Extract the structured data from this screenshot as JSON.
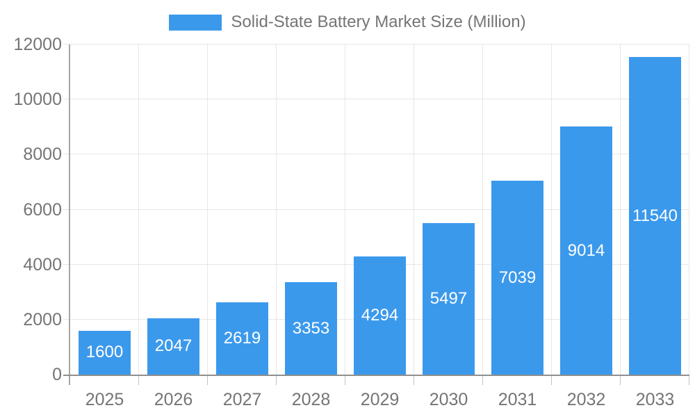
{
  "chart_data": {
    "type": "bar",
    "title": "Solid-State Battery Market Size (Million)",
    "categories": [
      "2025",
      "2026",
      "2027",
      "2028",
      "2029",
      "2030",
      "2031",
      "2032",
      "2033"
    ],
    "values": [
      1600,
      2047,
      2619,
      3353,
      4294,
      5497,
      7039,
      9014,
      11540
    ],
    "xlabel": "",
    "ylabel": "",
    "ylim": [
      0,
      12000
    ],
    "ytick_step": 2000,
    "yticks": [
      "0",
      "2000",
      "4000",
      "6000",
      "8000",
      "10000",
      "12000"
    ],
    "grid": true,
    "legend_position": "top-center",
    "value_labels": "inside-bar-centered",
    "bar_width_ratio": 0.75
  },
  "colors": {
    "bar": "#3B99EC",
    "grid": "#E6E6E6",
    "tick": "#C2C2C2",
    "axis_line_y": "#A6A6A6",
    "axis_line_x": "#8F8F8F",
    "axis_text": "#757575",
    "value_label": "#FFFFFF",
    "background": "#FFFFFF"
  }
}
